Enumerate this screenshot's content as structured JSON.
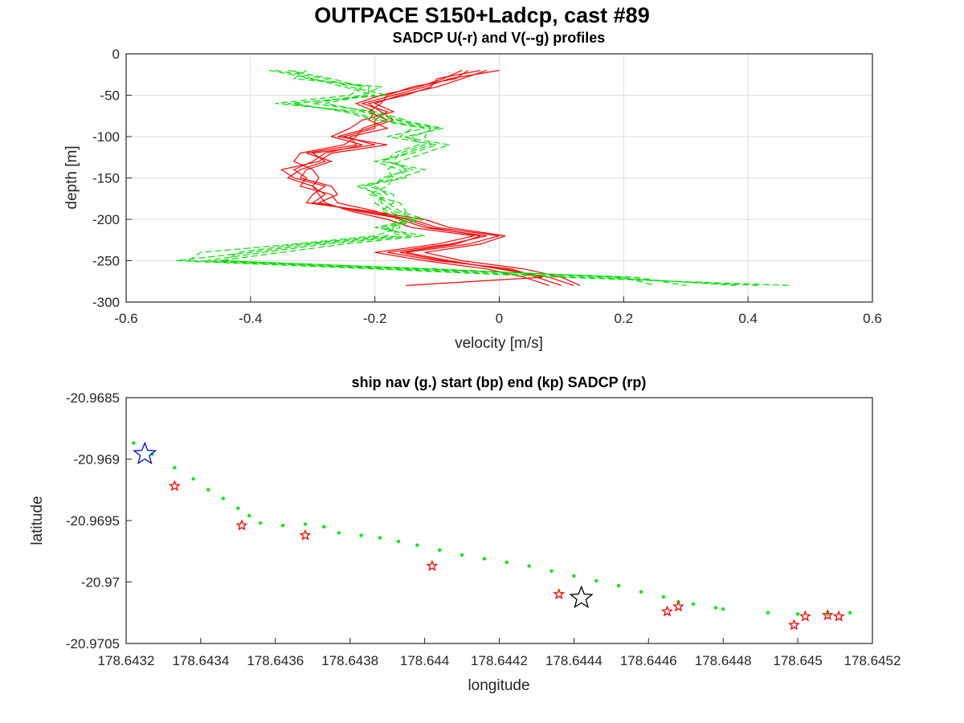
{
  "figure": {
    "title": "OUTPACE S150+Ladcp, cast #89"
  },
  "colors": {
    "u_profile": "#ff0000",
    "v_profile": "#00dd00",
    "ship_nav": "#00ee00",
    "start_marker": "#0000ff",
    "end_marker": "#000000",
    "sadcp_marker": "#ff0000"
  },
  "chart_data": [
    {
      "type": "line",
      "title": "SADCP U(-r) and V(--g) profiles",
      "xlabel": "velocity [m/s]",
      "ylabel": "depth [m]",
      "xlim": [
        -0.6,
        0.6
      ],
      "ylim": [
        -300,
        0
      ],
      "xticks": [
        "-0.6",
        "-0.4",
        "-0.2",
        "0",
        "0.2",
        "0.4",
        "0.6"
      ],
      "yticks": [
        "0",
        "-50",
        "-100",
        "-150",
        "-200",
        "-250",
        "-300"
      ],
      "grid": true,
      "depths": [
        -20,
        -30,
        -40,
        -50,
        -60,
        -70,
        -80,
        -90,
        -100,
        -110,
        -120,
        -130,
        -140,
        -150,
        -160,
        -170,
        -180,
        -190,
        -200,
        -210,
        -220,
        -230,
        -240,
        -250,
        -260,
        -270,
        -280
      ],
      "series": [
        {
          "style": "u",
          "values": [
            0.0,
            -0.08,
            -0.12,
            -0.17,
            -0.22,
            -0.18,
            -0.2,
            -0.2,
            -0.25,
            -0.2,
            -0.3,
            -0.28,
            -0.32,
            -0.34,
            -0.3,
            -0.28,
            -0.3,
            -0.22,
            -0.14,
            -0.1,
            0.0,
            -0.05,
            -0.15,
            -0.08,
            0.0,
            0.08,
            0.12
          ]
        },
        {
          "style": "u",
          "values": [
            -0.02,
            -0.06,
            -0.1,
            -0.16,
            -0.2,
            -0.17,
            -0.22,
            -0.24,
            -0.27,
            -0.22,
            -0.28,
            -0.3,
            -0.33,
            -0.31,
            -0.32,
            -0.27,
            -0.26,
            -0.2,
            -0.16,
            -0.12,
            -0.02,
            -0.08,
            -0.18,
            -0.1,
            0.02,
            0.06,
            0.1
          ]
        },
        {
          "style": "u",
          "values": [
            -0.05,
            -0.07,
            -0.14,
            -0.18,
            -0.19,
            -0.21,
            -0.18,
            -0.22,
            -0.23,
            -0.25,
            -0.32,
            -0.33,
            -0.3,
            -0.29,
            -0.3,
            -0.29,
            -0.28,
            -0.24,
            -0.18,
            -0.14,
            -0.04,
            -0.1,
            -0.2,
            -0.12,
            -0.02,
            0.04,
            0.08
          ]
        },
        {
          "style": "u",
          "values": [
            -0.03,
            -0.1,
            -0.11,
            -0.15,
            -0.21,
            -0.19,
            -0.17,
            -0.21,
            -0.26,
            -0.18,
            -0.27,
            -0.29,
            -0.35,
            -0.33,
            -0.28,
            -0.3,
            -0.31,
            -0.21,
            -0.12,
            -0.08,
            0.01,
            -0.03,
            -0.12,
            -0.06,
            0.04,
            0.1,
            0.13
          ]
        },
        {
          "style": "u",
          "values": [
            -0.06,
            -0.09,
            -0.13,
            -0.19,
            -0.23,
            -0.2,
            -0.21,
            -0.18,
            -0.24,
            -0.23,
            -0.31,
            -0.27,
            -0.31,
            -0.32,
            -0.27,
            -0.26,
            -0.29,
            -0.23,
            -0.15,
            -0.11,
            -0.03,
            -0.07,
            -0.16,
            -0.09,
            0.01,
            0.07,
            -0.15
          ]
        },
        {
          "style": "v",
          "values": [
            -0.37,
            -0.3,
            -0.25,
            -0.2,
            -0.33,
            -0.25,
            -0.2,
            -0.12,
            -0.18,
            -0.1,
            -0.14,
            -0.2,
            -0.16,
            -0.15,
            -0.22,
            -0.2,
            -0.18,
            -0.16,
            -0.12,
            -0.18,
            -0.16,
            -0.3,
            -0.4,
            -0.52,
            -0.2,
            0.1,
            0.47
          ]
        },
        {
          "style": "v",
          "values": [
            -0.34,
            -0.27,
            -0.22,
            -0.24,
            -0.36,
            -0.22,
            -0.17,
            -0.1,
            -0.14,
            -0.13,
            -0.17,
            -0.18,
            -0.14,
            -0.19,
            -0.2,
            -0.18,
            -0.2,
            -0.18,
            -0.14,
            -0.2,
            -0.12,
            -0.25,
            -0.35,
            -0.45,
            -0.1,
            0.18,
            0.38
          ]
        },
        {
          "style": "v",
          "values": [
            -0.31,
            -0.33,
            -0.19,
            -0.22,
            -0.3,
            -0.2,
            -0.15,
            -0.14,
            -0.16,
            -0.08,
            -0.12,
            -0.16,
            -0.18,
            -0.17,
            -0.18,
            -0.21,
            -0.16,
            -0.15,
            -0.16,
            -0.16,
            -0.2,
            -0.33,
            -0.48,
            -0.5,
            -0.15,
            0.22,
            0.3
          ]
        },
        {
          "style": "v",
          "values": [
            -0.36,
            -0.28,
            -0.24,
            -0.18,
            -0.34,
            -0.24,
            -0.19,
            -0.11,
            -0.12,
            -0.11,
            -0.15,
            -0.19,
            -0.12,
            -0.16,
            -0.23,
            -0.19,
            -0.19,
            -0.17,
            -0.13,
            -0.19,
            -0.14,
            -0.28,
            -0.38,
            -0.47,
            -0.18,
            0.14,
            0.42
          ]
        },
        {
          "style": "v",
          "values": [
            -0.33,
            -0.31,
            -0.21,
            -0.21,
            -0.28,
            -0.21,
            -0.16,
            -0.09,
            -0.15,
            -0.12,
            -0.16,
            -0.17,
            -0.15,
            -0.18,
            -0.21,
            -0.17,
            -0.17,
            -0.19,
            -0.15,
            -0.17,
            -0.18,
            -0.32,
            -0.42,
            -0.44,
            -0.12,
            0.2,
            0.25
          ]
        }
      ]
    },
    {
      "type": "scatter",
      "title": "ship nav (g.) start (bp) end (kp) SADCP (rp)",
      "xlabel": "longitude",
      "ylabel": "latitude",
      "xlim": [
        178.6432,
        178.6452
      ],
      "ylim": [
        -20.9705,
        -20.9685
      ],
      "xticks": [
        "178.6432",
        "178.6434",
        "178.6436",
        "178.6438",
        "178.644",
        "178.6442",
        "178.6444",
        "178.6446",
        "178.6448",
        "178.645",
        "178.6452"
      ],
      "yticks": [
        "-20.9685",
        "-20.969",
        "-20.9695",
        "-20.97",
        "-20.9705"
      ],
      "grid": false,
      "ship_track": [
        [
          178.64322,
          -20.96887
        ],
        [
          178.64327,
          -20.96896
        ],
        [
          178.64333,
          -20.96907
        ],
        [
          178.64338,
          -20.96916
        ],
        [
          178.64342,
          -20.96925
        ],
        [
          178.64346,
          -20.96932
        ],
        [
          178.6435,
          -20.9694
        ],
        [
          178.64353,
          -20.96946
        ],
        [
          178.64356,
          -20.96952
        ],
        [
          178.64362,
          -20.96954
        ],
        [
          178.64368,
          -20.96953
        ],
        [
          178.64373,
          -20.96955
        ],
        [
          178.64377,
          -20.9696
        ],
        [
          178.64383,
          -20.96962
        ],
        [
          178.64388,
          -20.96964
        ],
        [
          178.64393,
          -20.96967
        ],
        [
          178.64398,
          -20.9697
        ],
        [
          178.64404,
          -20.96974
        ],
        [
          178.6441,
          -20.96978
        ],
        [
          178.64416,
          -20.96981
        ],
        [
          178.64422,
          -20.96984
        ],
        [
          178.64428,
          -20.96987
        ],
        [
          178.64434,
          -20.96991
        ],
        [
          178.6444,
          -20.96995
        ],
        [
          178.64446,
          -20.96999
        ],
        [
          178.64452,
          -20.97003
        ],
        [
          178.64458,
          -20.97008
        ],
        [
          178.64464,
          -20.97012
        ],
        [
          178.64468,
          -20.97016
        ],
        [
          178.64472,
          -20.97018
        ],
        [
          178.64478,
          -20.97021
        ],
        [
          178.6448,
          -20.97022
        ],
        [
          178.64492,
          -20.97025
        ],
        [
          178.645,
          -20.97026
        ],
        [
          178.64508,
          -20.97026
        ],
        [
          178.64514,
          -20.97025
        ]
      ],
      "start": [
        178.64325,
        -20.96896
      ],
      "end": [
        178.64442,
        -20.97013
      ],
      "sadcp_points": [
        [
          178.64333,
          -20.96922
        ],
        [
          178.64351,
          -20.96954
        ],
        [
          178.64368,
          -20.96962
        ],
        [
          178.64402,
          -20.96987
        ],
        [
          178.64436,
          -20.9701
        ],
        [
          178.64465,
          -20.97024
        ],
        [
          178.64468,
          -20.9702
        ],
        [
          178.64499,
          -20.97035
        ],
        [
          178.64502,
          -20.97028
        ],
        [
          178.64508,
          -20.97027
        ],
        [
          178.64511,
          -20.97028
        ]
      ]
    }
  ]
}
